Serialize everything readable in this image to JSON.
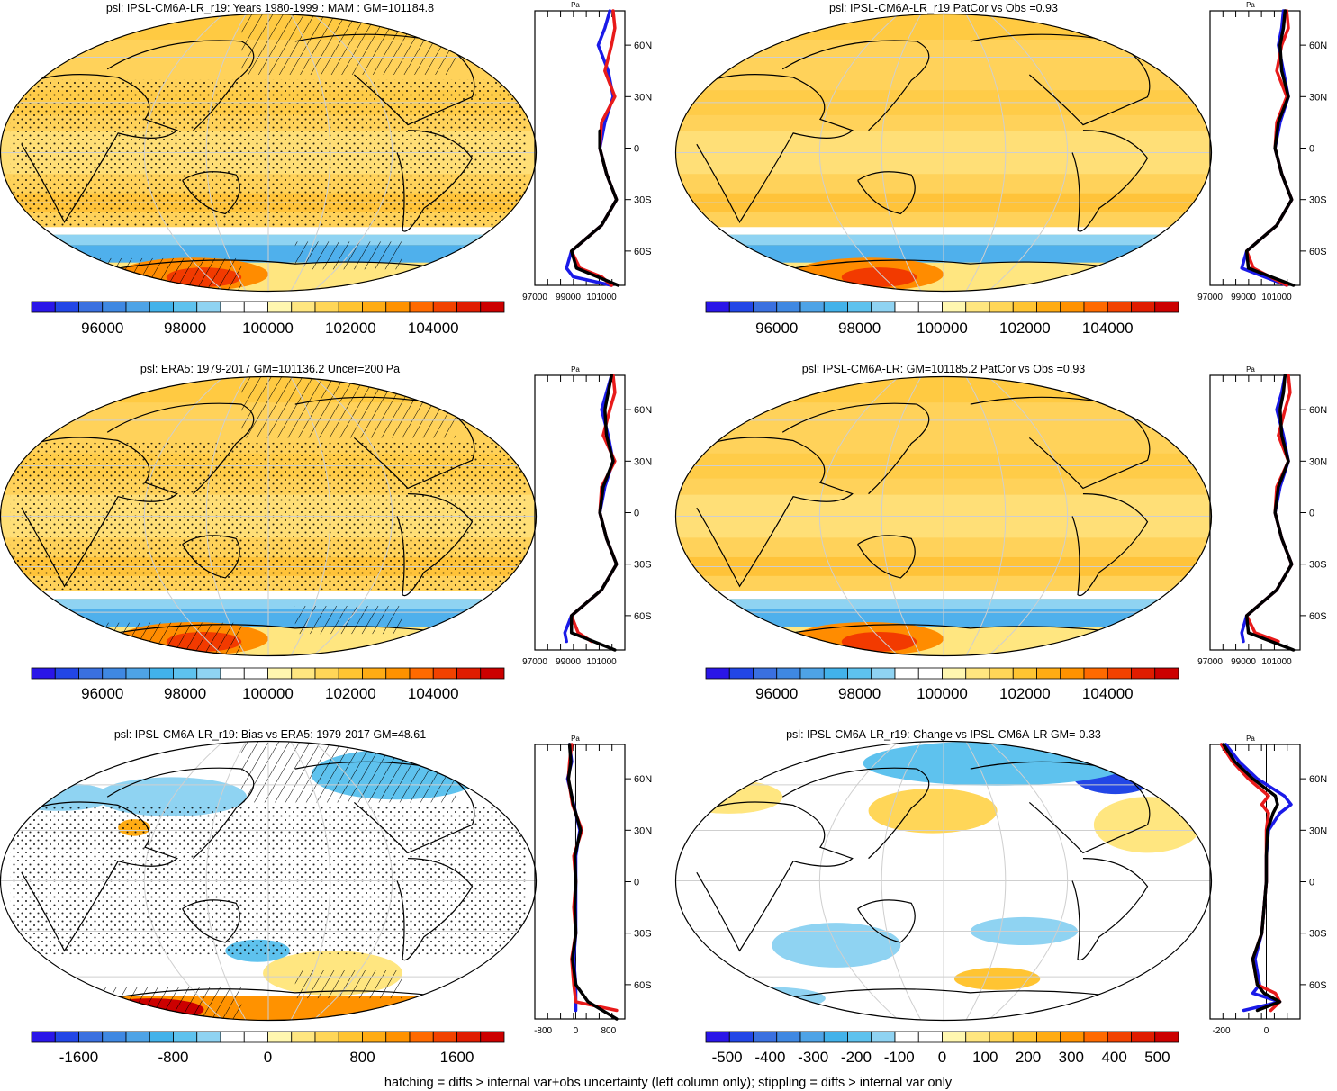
{
  "colors": {
    "palette": [
      "#2a16e8",
      "#2246e6",
      "#3a70e0",
      "#3f88e2",
      "#4ea3e6",
      "#42b2ea",
      "#5ec2ee",
      "#8fd3f2",
      "#ffffff",
      "#ffffff",
      "#fff7b0",
      "#ffe680",
      "#ffd658",
      "#ffc432",
      "#ffac14",
      "#ff9200",
      "#ff6a00",
      "#f24200",
      "#e01c00",
      "#cc0000"
    ],
    "ocean_warm": "#ffd25a",
    "ocean_warm_light": "#ffe27e",
    "land_warm": "#ffcf4e",
    "cold_band": "#4fb0ec",
    "hot_red": "#f23a00",
    "line_blue": "#1a1ae8",
    "line_red": "#e81a1a",
    "line_black": "#000000",
    "grid": "#cfcfcf"
  },
  "footer": "hatching = diffs > internal var+obs uncertainty (left column only); stippling = diffs > internal var only",
  "panels": [
    {
      "id": "p1",
      "title": "psl: IPSL-CM6A-LR_r19: Years 1980-1999 : MAM : GM=101184.8",
      "kind": "abs",
      "stipple": true,
      "hatch": true,
      "colorbar_labels": [
        "96000",
        "98000",
        "100000",
        "102000",
        "104000"
      ],
      "profile_xticks": [
        "97000",
        "99000",
        "101000"
      ],
      "profile_unit": "Pa",
      "lat_ticks": [
        "60N",
        "30N",
        "0",
        "30S",
        "60S"
      ]
    },
    {
      "id": "p2",
      "title": "psl: IPSL-CM6A-LR_r19 PatCor vs Obs =0.93",
      "kind": "abs",
      "stipple": false,
      "hatch": false,
      "colorbar_labels": [
        "96000",
        "98000",
        "100000",
        "102000",
        "104000"
      ],
      "profile_xticks": [
        "97000",
        "99000",
        "101000"
      ],
      "profile_unit": "Pa",
      "lat_ticks": [
        "60N",
        "30N",
        "0",
        "30S",
        "60S"
      ]
    },
    {
      "id": "p3",
      "title": "psl: ERA5: 1979-2017 GM=101136.2 Uncer=200 Pa",
      "kind": "abs",
      "stipple": true,
      "hatch": true,
      "colorbar_labels": [
        "96000",
        "98000",
        "100000",
        "102000",
        "104000"
      ],
      "profile_xticks": [
        "97000",
        "99000",
        "101000"
      ],
      "profile_unit": "Pa",
      "lat_ticks": [
        "60N",
        "30N",
        "0",
        "30S",
        "60S"
      ]
    },
    {
      "id": "p4",
      "title": "psl: IPSL-CM6A-LR: GM=101185.2 PatCor vs Obs =0.93",
      "kind": "abs",
      "stipple": false,
      "hatch": false,
      "colorbar_labels": [
        "96000",
        "98000",
        "100000",
        "102000",
        "104000"
      ],
      "profile_xticks": [
        "97000",
        "99000",
        "101000"
      ],
      "profile_unit": "Pa",
      "lat_ticks": [
        "60N",
        "30N",
        "0",
        "30S",
        "60S"
      ]
    },
    {
      "id": "p5",
      "title": "psl: IPSL-CM6A-LR_r19: Bias vs ERA5: 1979-2017 GM=48.61",
      "kind": "bias",
      "stipple": true,
      "hatch": true,
      "colorbar_labels": [
        "-1600",
        "-800",
        "0",
        "800",
        "1600"
      ],
      "profile_xticks": [
        "-800",
        "0",
        "800"
      ],
      "profile_unit": "Pa",
      "lat_ticks": [
        "60N",
        "30N",
        "0",
        "30S",
        "60S"
      ]
    },
    {
      "id": "p6",
      "title": "psl: IPSL-CM6A-LR_r19: Change vs IPSL-CM6A-LR GM=-0.33",
      "kind": "change",
      "stipple": false,
      "hatch": false,
      "colorbar_labels": [
        "-500",
        "-400",
        "-300",
        "-200",
        "-100",
        "0",
        "100",
        "200",
        "300",
        "400",
        "500"
      ],
      "profile_xticks": [
        "-200",
        "0"
      ],
      "profile_unit": "Pa",
      "lat_ticks": [
        "60N",
        "30N",
        "0",
        "30S",
        "60S"
      ]
    }
  ],
  "chart_data": [
    {
      "type": "heatmap",
      "title": "psl: IPSL-CM6A-LR_r19: Years 1980-1999 : MAM : GM=101184.8",
      "colorbar": {
        "min": 95000,
        "max": 105000,
        "labels": [
          96000,
          98000,
          100000,
          102000,
          104000
        ]
      },
      "zonal_profile": {
        "x_ticks": [
          97000,
          99000,
          101000
        ],
        "y_ticks": [
          "60N",
          "30N",
          "0",
          "30S",
          "60S"
        ],
        "series": [
          {
            "color": "#1a1ae8",
            "lat": [
              80,
              70,
              60,
              45,
              30,
              15,
              0,
              -15,
              -30,
              -45,
              -60,
              -70,
              -75,
              -80
            ],
            "values": [
              101500,
              101200,
              100800,
              101400,
              101700,
              101200,
              100900,
              101300,
              101900,
              101000,
              99200,
              98900,
              99300,
              101600
            ]
          },
          {
            "color": "#e81a1a",
            "lat": [
              80,
              70,
              60,
              45,
              30,
              15,
              0,
              -15,
              -30,
              -45,
              -60,
              -70,
              -75,
              -80
            ],
            "values": [
              101700,
              101800,
              101600,
              101200,
              101800,
              101000,
              100900,
              101300,
              101900,
              101000,
              99200,
              99700,
              101000,
              101600
            ]
          },
          {
            "color": "#000000",
            "lat": [
              10,
              0,
              -15,
              -30,
              -45,
              -60,
              -70,
              -80
            ],
            "values": [
              100900,
              100900,
              101300,
              101900,
              101000,
              99200,
              99500,
              102000
            ]
          }
        ]
      }
    },
    {
      "type": "heatmap",
      "title": "psl: IPSL-CM6A-LR_r19 PatCor vs Obs =0.93",
      "colorbar": {
        "min": 95000,
        "max": 105000,
        "labels": [
          96000,
          98000,
          100000,
          102000,
          104000
        ]
      },
      "zonal_profile": {
        "x_ticks": [
          97000,
          99000,
          101000
        ],
        "y_ticks": [
          "60N",
          "30N",
          "0",
          "30S",
          "60S"
        ],
        "series": [
          {
            "color": "#1a1ae8",
            "lat": [
              80,
              70,
              60,
              45,
              30,
              15,
              0,
              -15,
              -30,
              -45,
              -60,
              -70,
              -80
            ],
            "values": [
              101400,
              101300,
              101100,
              101400,
              101700,
              101200,
              100900,
              101300,
              101900,
              101000,
              99200,
              98900,
              101600
            ]
          },
          {
            "color": "#e81a1a",
            "lat": [
              80,
              70,
              60,
              45,
              30,
              15,
              0,
              -15,
              -30,
              -45,
              -60,
              -70,
              -80
            ],
            "values": [
              101600,
              101700,
              101300,
              101000,
              101600,
              101000,
              100900,
              101300,
              101900,
              101000,
              99200,
              99600,
              101600
            ]
          },
          {
            "color": "#000000",
            "lat": [
              80,
              70,
              60,
              45,
              30,
              15,
              0,
              -15,
              -30,
              -45,
              -60,
              -70,
              -80
            ],
            "values": [
              101500,
              101400,
              101200,
              101300,
              101700,
              101100,
              100900,
              101300,
              101900,
              101000,
              99200,
              99300,
              102000
            ]
          }
        ]
      }
    },
    {
      "type": "heatmap",
      "title": "psl: ERA5: 1979-2017 GM=101136.2 Uncer=200 Pa",
      "colorbar": {
        "min": 95000,
        "max": 105000,
        "labels": [
          96000,
          98000,
          100000,
          102000,
          104000
        ]
      },
      "zonal_profile": {
        "x_ticks": [
          97000,
          99000,
          101000
        ],
        "y_ticks": [
          "60N",
          "30N",
          "0",
          "30S",
          "60S"
        ],
        "series": [
          {
            "color": "#1a1ae8",
            "lat": [
              80,
              70,
              60,
              45,
              30,
              15,
              0,
              -15,
              -30,
              -45,
              -60,
              -70,
              -75
            ],
            "values": [
              101600,
              101300,
              101000,
              101400,
              101700,
              101200,
              100900,
              101300,
              101900,
              101000,
              99200,
              98800,
              98900
            ]
          },
          {
            "color": "#e81a1a",
            "lat": [
              80,
              70,
              60,
              45,
              30,
              15,
              0,
              -15,
              -30,
              -45,
              -60,
              -70,
              -75
            ],
            "values": [
              101700,
              101800,
              101500,
              101100,
              101800,
              101000,
              100900,
              101300,
              101900,
              101000,
              99200,
              99600,
              100400
            ]
          },
          {
            "color": "#000000",
            "lat": [
              80,
              70,
              60,
              45,
              30,
              15,
              0,
              -15,
              -30,
              -45,
              -60,
              -70,
              -80
            ],
            "values": [
              101600,
              101400,
              101200,
              101300,
              101700,
              101100,
              100900,
              101300,
              101900,
              101000,
              99200,
              99200,
              101800
            ]
          }
        ]
      }
    },
    {
      "type": "heatmap",
      "title": "psl: IPSL-CM6A-LR: GM=101185.2 PatCor vs Obs =0.93",
      "colorbar": {
        "min": 95000,
        "max": 105000,
        "labels": [
          96000,
          98000,
          100000,
          102000,
          104000
        ]
      },
      "zonal_profile": {
        "x_ticks": [
          97000,
          99000,
          101000
        ],
        "y_ticks": [
          "60N",
          "30N",
          "0",
          "30S",
          "60S"
        ],
        "series": [
          {
            "color": "#1a1ae8",
            "lat": [
              80,
              70,
              60,
              45,
              30,
              15,
              0,
              -15,
              -30,
              -45,
              -60,
              -70,
              -75
            ],
            "values": [
              101500,
              101300,
              101000,
              101400,
              101700,
              101200,
              100900,
              101300,
              101900,
              101000,
              99200,
              98900,
              99000
            ]
          },
          {
            "color": "#e81a1a",
            "lat": [
              80,
              70,
              60,
              45,
              30,
              15,
              0,
              -15,
              -30,
              -45,
              -60,
              -70,
              -75
            ],
            "values": [
              101700,
              101800,
              101500,
              101100,
              101700,
              101000,
              100900,
              101300,
              101900,
              101000,
              99200,
              99700,
              101100
            ]
          },
          {
            "color": "#000000",
            "lat": [
              80,
              70,
              60,
              45,
              30,
              15,
              0,
              -15,
              -30,
              -45,
              -60,
              -70,
              -80
            ],
            "values": [
              101500,
              101400,
              101200,
              101300,
              101700,
              101100,
              100900,
              101300,
              101900,
              101000,
              99200,
              99300,
              102000
            ]
          }
        ]
      }
    },
    {
      "type": "heatmap",
      "title": "psl: IPSL-CM6A-LR_r19: Bias vs ERA5: 1979-2017 GM=48.61",
      "colorbar": {
        "min": -2000,
        "max": 2000,
        "labels": [
          -1600,
          -800,
          0,
          800,
          1600
        ]
      },
      "zonal_profile": {
        "x_ticks": [
          -800,
          0,
          800
        ],
        "y_ticks": [
          "60N",
          "30N",
          "0",
          "30S",
          "60S"
        ],
        "series": [
          {
            "color": "#1a1ae8",
            "lat": [
              80,
              70,
              60,
              45,
              30,
              15,
              0,
              -15,
              -30,
              -45,
              -60,
              -70,
              -75
            ],
            "values": [
              -150,
              -100,
              -200,
              -50,
              100,
              0,
              0,
              0,
              0,
              -50,
              0,
              0,
              0
            ]
          },
          {
            "color": "#e81a1a",
            "lat": [
              80,
              70,
              60,
              45,
              30,
              15,
              0,
              -15,
              -30,
              -45,
              -60,
              -70,
              -75
            ],
            "values": [
              -100,
              -150,
              -180,
              -80,
              150,
              -50,
              0,
              -50,
              0,
              -100,
              -50,
              0,
              1000
            ]
          },
          {
            "color": "#000000",
            "lat": [
              80,
              70,
              60,
              45,
              30,
              15,
              0,
              -15,
              -30,
              -45,
              -60,
              -70,
              -80
            ],
            "values": [
              -150,
              -120,
              -180,
              -60,
              120,
              -20,
              0,
              -20,
              0,
              -80,
              0,
              300,
              1000
            ]
          }
        ]
      }
    },
    {
      "type": "heatmap",
      "title": "psl: IPSL-CM6A-LR_r19: Change vs IPSL-CM6A-LR GM=-0.33",
      "colorbar": {
        "min": -550,
        "max": 550,
        "labels": [
          -500,
          -400,
          -300,
          -200,
          -100,
          0,
          100,
          200,
          300,
          400,
          500
        ]
      },
      "zonal_profile": {
        "x_ticks": [
          -200,
          0
        ],
        "y_ticks": [
          "60N",
          "30N",
          "0",
          "30S",
          "60S"
        ],
        "series": [
          {
            "color": "#1a1ae8",
            "lat": [
              80,
              70,
              60,
              50,
              45,
              40,
              30,
              15,
              0,
              -15,
              -30,
              -45,
              -60,
              -65,
              -70,
              -75
            ],
            "values": [
              -180,
              -120,
              -40,
              80,
              110,
              60,
              10,
              0,
              0,
              -10,
              -20,
              -50,
              -30,
              -60,
              60,
              -100
            ]
          },
          {
            "color": "#e81a1a",
            "lat": [
              80,
              70,
              60,
              50,
              45,
              40,
              30,
              15,
              0,
              -15,
              -30,
              -45,
              -60,
              -65,
              -70,
              -75
            ],
            "values": [
              -200,
              -150,
              -80,
              10,
              -20,
              10,
              0,
              0,
              0,
              -10,
              -20,
              -60,
              -40,
              40,
              60,
              20
            ]
          },
          {
            "color": "#000000",
            "lat": [
              80,
              70,
              60,
              50,
              45,
              40,
              30,
              15,
              0,
              -15,
              -30,
              -45,
              -60,
              -65,
              -70,
              -75
            ],
            "values": [
              -190,
              -140,
              -60,
              40,
              50,
              30,
              5,
              0,
              0,
              -10,
              -20,
              -60,
              -40,
              -10,
              60,
              -40
            ]
          }
        ]
      }
    }
  ]
}
